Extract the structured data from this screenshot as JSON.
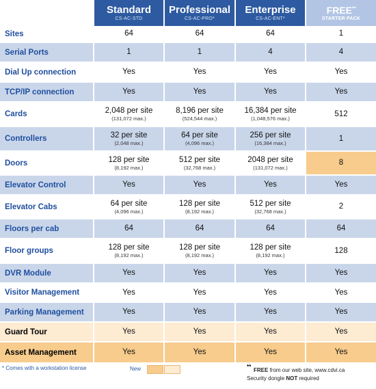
{
  "header": {
    "columns": [
      {
        "title": "Standard",
        "code": "CS-AC-STD"
      },
      {
        "title": "Professional",
        "code": "CS-AC-PRO*"
      },
      {
        "title": "Enterprise",
        "code": "CS-AC-ENT*"
      },
      {
        "title": "FREE",
        "title_mark": "**",
        "code": "STARTER PACK"
      }
    ]
  },
  "rows": [
    {
      "label": "Sites",
      "v": [
        "64",
        "64",
        "64",
        "1"
      ]
    },
    {
      "label": "Serial Ports",
      "v": [
        "1",
        "1",
        "4",
        "4"
      ]
    },
    {
      "label": "Dial Up connection",
      "v": [
        "Yes",
        "Yes",
        "Yes",
        "Yes"
      ]
    },
    {
      "label": "TCP/IP connection",
      "v": [
        "Yes",
        "Yes",
        "Yes",
        "Yes"
      ]
    },
    {
      "label": "Cards",
      "v": [
        "2,048 per site",
        "8,196 per site",
        "16,384 per site",
        "512"
      ],
      "s": [
        "(131,072 max.)",
        "(524,544 max.)",
        "(1,048,576 max.)",
        ""
      ]
    },
    {
      "label": "Controllers",
      "v": [
        "32 per site",
        "64 per site",
        "256 per site",
        "1"
      ],
      "s": [
        "(2,048 max.)",
        "(4,096 max.)",
        "(16,384 max.)",
        ""
      ]
    },
    {
      "label": "Doors",
      "v": [
        "128 per site",
        "512 per site",
        "2048 per site",
        "8"
      ],
      "s": [
        "(8,192 max.)",
        "(32,768 max.)",
        "(131,072 max.)",
        ""
      ]
    },
    {
      "label": "Elevator Control",
      "v": [
        "Yes",
        "Yes",
        "Yes",
        "Yes"
      ]
    },
    {
      "label": "Elevator Cabs",
      "v": [
        "64 per site",
        "128 per site",
        "512 per site",
        "2"
      ],
      "s": [
        "(4,096 max.)",
        "(8,192 max.)",
        "(32,768 max.)",
        ""
      ]
    },
    {
      "label": "Floors per cab",
      "v": [
        "64",
        "64",
        "64",
        "64"
      ]
    },
    {
      "label": "Floor groups",
      "v": [
        "128 per site",
        "128 per site",
        "128 per site",
        "128"
      ],
      "s": [
        "(8,192 max.)",
        "(8,192 max.)",
        "(8,192 max.)",
        ""
      ]
    },
    {
      "label": "DVR Module",
      "v": [
        "Yes",
        "Yes",
        "Yes",
        "Yes"
      ]
    },
    {
      "label": "Visitor Management",
      "v": [
        "Yes",
        "Yes",
        "Yes",
        "Yes"
      ]
    },
    {
      "label": "Parking Management",
      "v": [
        "Yes",
        "Yes",
        "Yes",
        "Yes"
      ]
    },
    {
      "label": "Guard Tour",
      "v": [
        "Yes",
        "Yes",
        "Yes",
        "Yes"
      ]
    },
    {
      "label": "Asset Management",
      "v": [
        "Yes",
        "Yes",
        "Yes",
        "Yes"
      ]
    }
  ],
  "footer": {
    "note": "* Comes with a workstation license",
    "new_label": "New",
    "free_mark": "**",
    "free_word": "FREE",
    "free_text": " from our web site, www.cdvi.ca",
    "dongle_text": "Security dongle ",
    "dongle_not": "NOT",
    "dongle_end": " required"
  },
  "colors": {
    "header_blue": "#2d5aa0",
    "header_free": "#b2c5e4",
    "row_blue": "#c9d6ea",
    "new_orange": "#f7cc8c",
    "new_peach": "#fdebd2",
    "label_blue": "#1f4e9e"
  }
}
